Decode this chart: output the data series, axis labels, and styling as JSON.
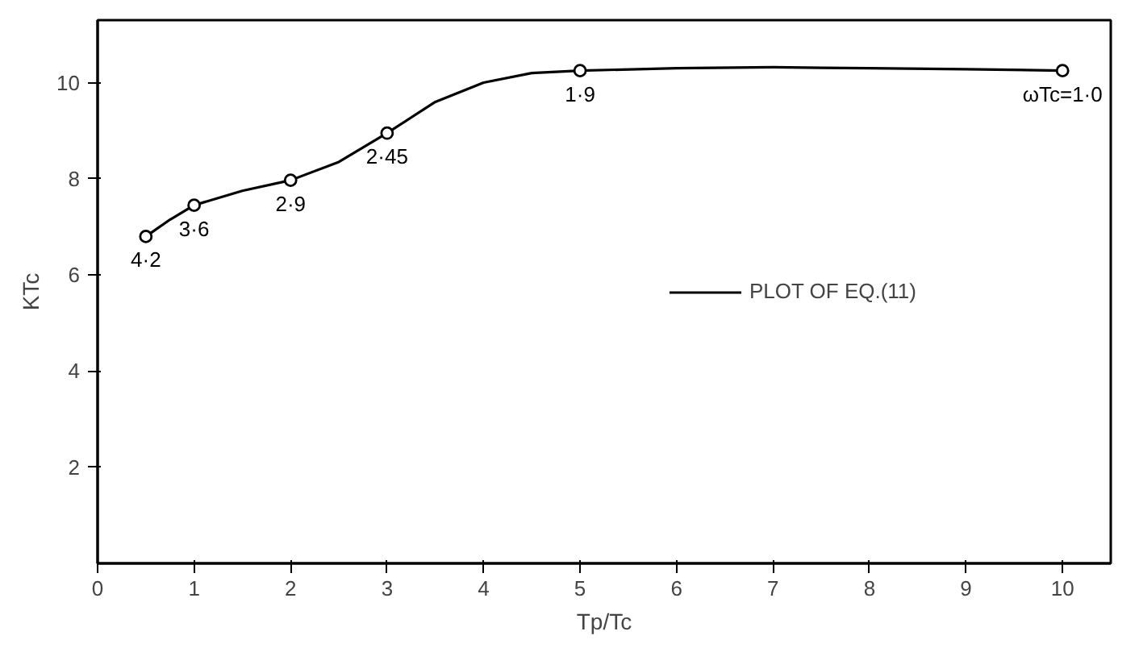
{
  "chart_data": {
    "type": "line",
    "xlabel": "Tp/Tc",
    "ylabel": "KTc",
    "xlim": [
      0,
      10.5
    ],
    "ylim": [
      0,
      11.3
    ],
    "xticks": [
      0,
      1,
      2,
      3,
      4,
      5,
      6,
      7,
      8,
      9,
      10
    ],
    "yticks": [
      2,
      4,
      6,
      8,
      10
    ],
    "grid": false,
    "legend": "right",
    "series": [
      {
        "name": "PLOT OF EQ.(11)",
        "color": "#000000",
        "marker": "none",
        "line_style": "solid",
        "x": [
          0.5,
          0.75,
          1,
          1.5,
          2,
          2.5,
          3,
          3.5,
          4,
          4.5,
          5,
          6,
          7,
          8,
          9,
          10
        ],
        "values": [
          6.8,
          7.15,
          7.45,
          7.75,
          7.97,
          8.35,
          8.95,
          9.6,
          10.0,
          10.2,
          10.25,
          10.3,
          10.32,
          10.3,
          10.28,
          10.25
        ]
      },
      {
        "type": "scatter",
        "color": "#000000",
        "marker": "circle",
        "x": [
          0.5,
          1,
          2,
          3,
          5,
          10
        ],
        "values": [
          6.8,
          7.45,
          7.97,
          8.95,
          10.25,
          10.25
        ],
        "value_labels": [
          "4·2",
          "3·6",
          "2·9",
          "2·45",
          "1·9",
          "ωTc=1·0"
        ]
      }
    ]
  }
}
